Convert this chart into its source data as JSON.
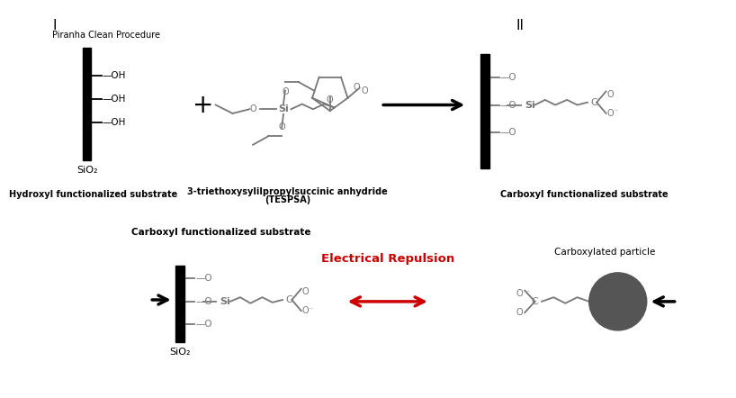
{
  "bg_color": "#ffffff",
  "fig_width": 8.18,
  "fig_height": 4.42,
  "dpi": 100,
  "label_I": "I",
  "label_II": "II",
  "piranha_text": "Piranha Clean Procedure",
  "hydroxyl_label": "Hydroxyl functionalized substrate",
  "tespsa_label1": "3-triethoxysylilpropylsuccinic anhydride",
  "tespsa_label2": "(TESPSA)",
  "carboxyl_label_top": "Carboxyl functionalized substrate",
  "carboxyl_label_bottom": "Carboxyl functionalized substrate",
  "carboxylated_particle": "Carboxylated particle",
  "electrical_repulsion": "Electrical Repulsion",
  "sio2_top": "SiO₂",
  "sio2_bottom": "SiO₂",
  "black": "#000000",
  "red": "#cc0000",
  "gray_particle": "#555555",
  "gray_chain": "#777777"
}
